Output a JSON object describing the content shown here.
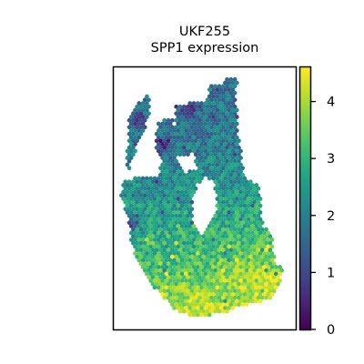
{
  "chart_data": {
    "type": "scatter",
    "title": "UKF255",
    "subtitle": "SPP1 expression",
    "xlabel": "",
    "ylabel": "",
    "colorbar": {
      "colormap": "viridis",
      "range": [
        0,
        4.6
      ],
      "ticks": [
        0,
        1,
        2,
        3,
        4
      ],
      "tick_labels": [
        "0",
        "1",
        "2",
        "3",
        "4"
      ]
    },
    "axes_frame": true,
    "axis_ticks_visible": false,
    "grid": false,
    "legend": "none",
    "spot_pattern": "hexagonal grid",
    "tissue_regions": [
      {
        "name": "left lobe",
        "outline": [
          [
            0.14,
            0.13
          ],
          [
            0.2,
            0.1
          ],
          [
            0.2,
            0.18
          ],
          [
            0.13,
            0.3
          ],
          [
            0.08,
            0.4
          ],
          [
            0.07,
            0.38
          ],
          [
            0.08,
            0.2
          ]
        ]
      },
      {
        "name": "main body",
        "outline": [
          [
            0.24,
            0.21
          ],
          [
            0.32,
            0.19
          ],
          [
            0.33,
            0.25
          ],
          [
            0.34,
            0.15
          ],
          [
            0.46,
            0.13
          ],
          [
            0.52,
            0.12
          ],
          [
            0.52,
            0.07
          ],
          [
            0.6,
            0.06
          ],
          [
            0.62,
            0.04
          ],
          [
            0.68,
            0.04
          ],
          [
            0.67,
            0.1
          ],
          [
            0.69,
            0.28
          ],
          [
            0.72,
            0.42
          ],
          [
            0.8,
            0.45
          ],
          [
            0.82,
            0.6
          ],
          [
            0.87,
            0.65
          ],
          [
            0.89,
            0.75
          ],
          [
            0.94,
            0.77
          ],
          [
            0.88,
            0.88
          ],
          [
            0.78,
            0.9
          ],
          [
            0.66,
            0.92
          ],
          [
            0.61,
            0.94
          ],
          [
            0.44,
            0.95
          ],
          [
            0.34,
            0.93
          ],
          [
            0.26,
            0.87
          ],
          [
            0.2,
            0.82
          ],
          [
            0.14,
            0.76
          ],
          [
            0.1,
            0.68
          ],
          [
            0.08,
            0.57
          ],
          [
            0.04,
            0.5
          ],
          [
            0.05,
            0.43
          ],
          [
            0.14,
            0.42
          ],
          [
            0.24,
            0.42
          ],
          [
            0.26,
            0.36
          ],
          [
            0.23,
            0.3
          ]
        ]
      }
    ],
    "tissue_holes": [
      {
        "name": "central gap",
        "outline": [
          [
            0.46,
            0.45
          ],
          [
            0.5,
            0.42
          ],
          [
            0.55,
            0.44
          ],
          [
            0.57,
            0.52
          ],
          [
            0.53,
            0.6
          ],
          [
            0.48,
            0.64
          ],
          [
            0.44,
            0.58
          ],
          [
            0.43,
            0.5
          ]
        ]
      },
      {
        "name": "upper notch",
        "outline": [
          [
            0.34,
            0.34
          ],
          [
            0.44,
            0.33
          ],
          [
            0.46,
            0.39
          ],
          [
            0.38,
            0.4
          ]
        ]
      }
    ],
    "value_gradient": "low (about 1.8) in the upper lobes, moderate (about 2.7-3.1) in the middle, high (about 3.5-4.3) in the lower right region",
    "hotspots": [
      {
        "x": 0.86,
        "y": 0.85,
        "value": 4.4
      },
      {
        "x": 0.66,
        "y": 0.8,
        "value": 4.0
      },
      {
        "x": 0.4,
        "y": 0.93,
        "value": 4.2
      }
    ],
    "lowspots": [
      {
        "x": 0.26,
        "y": 0.3,
        "value": 0.4
      },
      {
        "x": 0.13,
        "y": 0.2,
        "value": 0.6
      },
      {
        "x": 0.42,
        "y": 0.16,
        "value": 0.5
      },
      {
        "x": 0.1,
        "y": 0.6,
        "value": 0.6
      }
    ]
  }
}
